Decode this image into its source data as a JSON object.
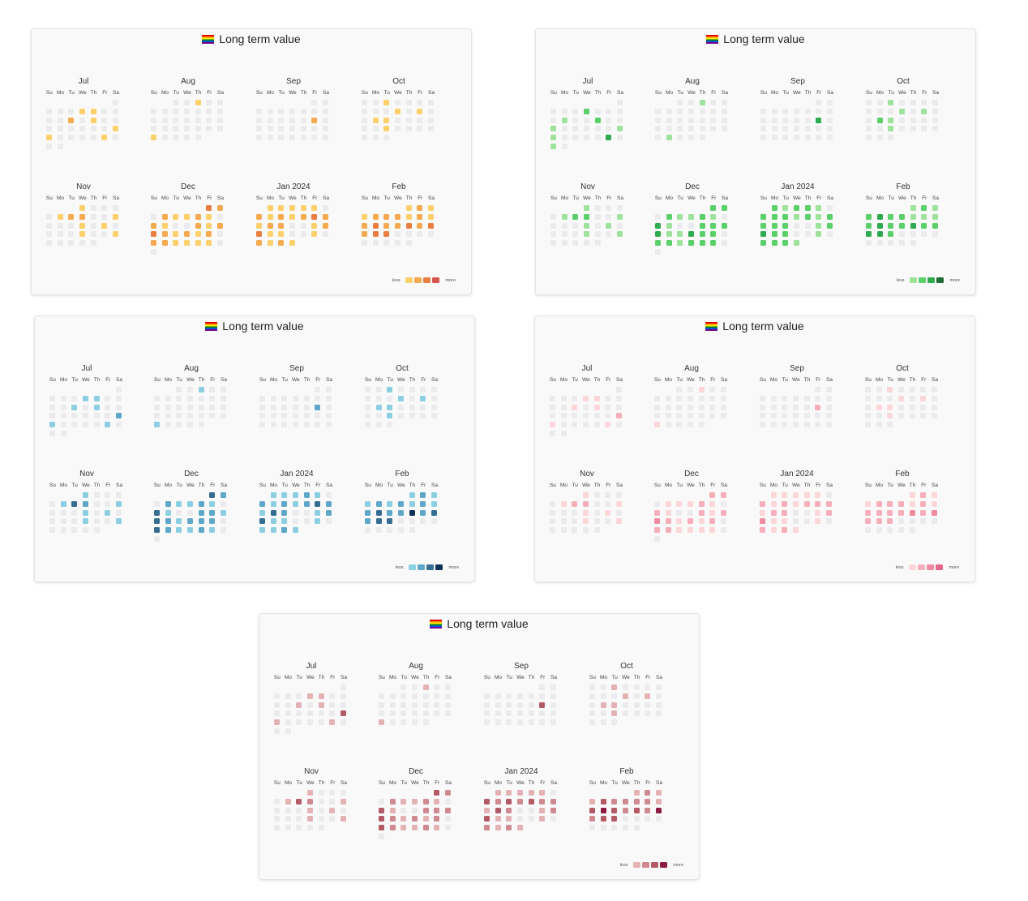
{
  "cards": [
    {
      "title": "Long term value",
      "scheme": "orange"
    },
    {
      "title": "Long term value",
      "scheme": "green"
    },
    {
      "title": "Long term value",
      "scheme": "blue"
    },
    {
      "title": "Long term value",
      "scheme": "pink"
    },
    {
      "title": "Long term value",
      "scheme": "rose"
    }
  ],
  "legend": {
    "less": "less",
    "more": "more"
  },
  "weekdays": [
    "Su",
    "Mo",
    "Tu",
    "We",
    "Th",
    "Fr",
    "Sa"
  ],
  "months": [
    {
      "label": "Jul",
      "start_dow": 6,
      "days": 31
    },
    {
      "label": "Aug",
      "start_dow": 2,
      "days": 31
    },
    {
      "label": "Sep",
      "start_dow": 5,
      "days": 30
    },
    {
      "label": "Oct",
      "start_dow": 0,
      "days": 31
    },
    {
      "label": "Nov",
      "start_dow": 3,
      "days": 30
    },
    {
      "label": "Dec",
      "start_dow": 5,
      "days": 31
    },
    {
      "label": "Jan 2024",
      "start_dow": 1,
      "days": 31
    },
    {
      "label": "Feb",
      "start_dow": 4,
      "days": 29
    }
  ],
  "palettes": {
    "empty": "#ebebed",
    "orange": [
      "#fcd06b",
      "#f5aa4f",
      "#e97e40",
      "#d9534f"
    ],
    "green": [
      "#9ee29c",
      "#5bcf6a",
      "#2eaa4f",
      "#206b36"
    ],
    "blue": [
      "#8ccfe2",
      "#5fa7c8",
      "#366d92",
      "#0f3057"
    ],
    "pink": [
      "#fcd6d9",
      "#f7aebb",
      "#f08aa0",
      "#e7648a"
    ],
    "rose": [
      "#e4b2b5",
      "#cf8990",
      "#b45a67",
      "#8c1c43"
    ]
  },
  "activity": {
    "orange": {
      "Jul": {
        "5": 1,
        "6": 1,
        "11": 2,
        "13": 1,
        "22": 1,
        "23": 1,
        "28": 1
      },
      "Aug": {
        "3": 1,
        "27": 1
      },
      "Sep": {
        "15": 2
      },
      "Oct": {
        "3": 1,
        "11": 1,
        "13": 1,
        "16": 1,
        "17": 1,
        "24": 1
      },
      "Nov": {
        "1": 1,
        "6": 1,
        "7": 2,
        "8": 2,
        "11": 1,
        "15": 1,
        "17": 1,
        "22": 1,
        "25": 1
      },
      "Dec": {
        "1": 3,
        "2": 2,
        "4": 2,
        "5": 1,
        "6": 1,
        "7": 2,
        "8": 1,
        "10": 2,
        "11": 1,
        "14": 2,
        "15": 1,
        "16": 2,
        "17": 3,
        "18": 2,
        "19": 1,
        "20": 2,
        "21": 1,
        "22": 2,
        "24": 2,
        "25": 2,
        "26": 1,
        "27": 1,
        "28": 1,
        "29": 1
      },
      "Jan 2024": {
        "1": 1,
        "2": 1,
        "3": 1,
        "4": 1,
        "5": 1,
        "7": 2,
        "8": 1,
        "9": 2,
        "10": 1,
        "11": 2,
        "12": 3,
        "13": 2,
        "14": 1,
        "15": 2,
        "16": 2,
        "19": 1,
        "20": 2,
        "21": 3,
        "22": 1,
        "23": 1,
        "26": 1,
        "28": 2,
        "29": 1,
        "30": 2,
        "31": 1
      },
      "Feb": {
        "1": 1,
        "2": 2,
        "3": 1,
        "4": 1,
        "5": 2,
        "6": 2,
        "7": 2,
        "8": 1,
        "9": 2,
        "10": 1,
        "11": 2,
        "12": 3,
        "13": 2,
        "14": 2,
        "15": 3,
        "16": 2,
        "17": 3,
        "18": 2,
        "19": 3,
        "20": 3
      }
    },
    "green": {
      "Jul": {
        "5": 2,
        "10": 1,
        "13": 2,
        "16": 1,
        "22": 1,
        "23": 1,
        "28": 3,
        "30": 1
      },
      "Aug": {
        "3": 1,
        "28": 1
      },
      "Sep": {
        "15": 3
      },
      "Oct": {
        "3": 1,
        "11": 1,
        "13": 1,
        "16": 2,
        "17": 1,
        "24": 1
      },
      "Nov": {
        "1": 1,
        "6": 1,
        "7": 2,
        "8": 2,
        "11": 1,
        "15": 1,
        "17": 1,
        "22": 1,
        "25": 1
      },
      "Dec": {
        "1": 2,
        "2": 2,
        "4": 2,
        "5": 1,
        "6": 1,
        "7": 2,
        "8": 1,
        "10": 3,
        "11": 1,
        "14": 2,
        "15": 2,
        "16": 2,
        "17": 3,
        "18": 1,
        "19": 1,
        "20": 3,
        "21": 2,
        "22": 2,
        "24": 2,
        "25": 2,
        "26": 1,
        "27": 2,
        "28": 2,
        "29": 2
      },
      "Jan 2024": {
        "1": 2,
        "2": 1,
        "3": 2,
        "4": 2,
        "5": 1,
        "7": 2,
        "8": 2,
        "9": 2,
        "10": 1,
        "11": 2,
        "12": 1,
        "13": 2,
        "14": 2,
        "15": 2,
        "16": 2,
        "19": 1,
        "20": 2,
        "21": 3,
        "22": 2,
        "23": 2,
        "26": 1,
        "28": 2,
        "29": 2,
        "30": 2,
        "31": 1
      },
      "Feb": {
        "1": 1,
        "2": 2,
        "3": 1,
        "4": 2,
        "5": 3,
        "6": 2,
        "7": 2,
        "8": 1,
        "9": 1,
        "10": 1,
        "11": 2,
        "12": 3,
        "13": 2,
        "14": 2,
        "15": 3,
        "16": 2,
        "17": 2,
        "18": 3,
        "19": 3,
        "20": 2
      }
    },
    "blue": {
      "Jul": {
        "5": 1,
        "6": 1,
        "11": 1,
        "13": 1,
        "22": 2,
        "23": 1,
        "28": 1
      },
      "Aug": {
        "3": 1,
        "27": 1
      },
      "Sep": {
        "15": 2
      },
      "Oct": {
        "3": 1,
        "11": 1,
        "13": 1,
        "16": 1,
        "17": 1,
        "24": 1
      },
      "Nov": {
        "1": 1,
        "6": 1,
        "7": 3,
        "8": 2,
        "11": 1,
        "15": 1,
        "17": 1,
        "22": 1,
        "25": 1
      },
      "Dec": {
        "1": 3,
        "2": 2,
        "4": 2,
        "5": 1,
        "6": 1,
        "7": 2,
        "8": 1,
        "10": 3,
        "11": 1,
        "14": 2,
        "15": 2,
        "16": 1,
        "17": 3,
        "18": 2,
        "19": 1,
        "20": 2,
        "21": 2,
        "22": 2,
        "24": 3,
        "25": 2,
        "26": 1,
        "27": 1,
        "28": 2,
        "29": 1
      },
      "Jan 2024": {
        "1": 1,
        "2": 1,
        "3": 1,
        "4": 2,
        "5": 1,
        "7": 2,
        "8": 1,
        "9": 2,
        "10": 1,
        "11": 2,
        "12": 3,
        "13": 2,
        "14": 1,
        "15": 3,
        "16": 2,
        "19": 1,
        "20": 2,
        "21": 3,
        "22": 1,
        "23": 1,
        "26": 1,
        "28": 1,
        "29": 1,
        "30": 2,
        "31": 1
      },
      "Feb": {
        "1": 1,
        "2": 2,
        "3": 1,
        "4": 1,
        "5": 2,
        "6": 1,
        "7": 2,
        "8": 1,
        "9": 2,
        "10": 1,
        "11": 2,
        "12": 3,
        "13": 2,
        "14": 2,
        "15": 4,
        "16": 2,
        "17": 3,
        "18": 2,
        "19": 3,
        "20": 3
      }
    },
    "pink": {
      "Jul": {
        "5": 1,
        "6": 1,
        "11": 1,
        "13": 1,
        "22": 2,
        "23": 1,
        "28": 1
      },
      "Aug": {
        "3": 1,
        "27": 1
      },
      "Sep": {
        "15": 2
      },
      "Oct": {
        "3": 1,
        "11": 1,
        "13": 1,
        "16": 1,
        "17": 1,
        "24": 1
      },
      "Nov": {
        "1": 1,
        "6": 1,
        "7": 2,
        "8": 2,
        "11": 1,
        "15": 1,
        "17": 1,
        "22": 1,
        "25": 1
      },
      "Dec": {
        "1": 2,
        "2": 2,
        "4": 1,
        "5": 1,
        "6": 1,
        "7": 2,
        "8": 1,
        "10": 2,
        "11": 1,
        "14": 2,
        "15": 1,
        "16": 2,
        "17": 3,
        "18": 2,
        "19": 1,
        "20": 2,
        "21": 1,
        "22": 2,
        "24": 2,
        "25": 2,
        "26": 1,
        "27": 1,
        "28": 1,
        "29": 1
      },
      "Jan 2024": {
        "1": 1,
        "2": 1,
        "3": 1,
        "4": 1,
        "5": 1,
        "7": 2,
        "8": 1,
        "9": 2,
        "10": 1,
        "11": 2,
        "12": 2,
        "13": 2,
        "14": 1,
        "15": 2,
        "16": 2,
        "19": 1,
        "20": 2,
        "21": 3,
        "22": 1,
        "23": 1,
        "26": 1,
        "28": 2,
        "29": 1,
        "30": 2,
        "31": 1
      },
      "Feb": {
        "1": 1,
        "2": 2,
        "3": 1,
        "4": 1,
        "5": 2,
        "6": 2,
        "7": 2,
        "8": 1,
        "9": 2,
        "10": 1,
        "11": 2,
        "12": 2,
        "13": 2,
        "14": 2,
        "15": 3,
        "16": 2,
        "17": 3,
        "18": 2,
        "19": 2,
        "20": 2
      }
    },
    "rose": {
      "Jul": {
        "5": 1,
        "6": 1,
        "11": 1,
        "13": 1,
        "22": 3,
        "23": 1,
        "28": 1
      },
      "Aug": {
        "3": 1,
        "27": 1
      },
      "Sep": {
        "15": 3
      },
      "Oct": {
        "3": 1,
        "11": 1,
        "13": 1,
        "16": 1,
        "17": 1,
        "24": 1
      },
      "Nov": {
        "1": 1,
        "6": 1,
        "7": 3,
        "8": 2,
        "11": 1,
        "15": 1,
        "17": 1,
        "22": 1,
        "25": 1
      },
      "Dec": {
        "1": 3,
        "2": 2,
        "4": 2,
        "5": 1,
        "6": 1,
        "7": 2,
        "8": 1,
        "10": 3,
        "11": 1,
        "14": 2,
        "15": 2,
        "16": 2,
        "17": 3,
        "18": 2,
        "19": 1,
        "20": 2,
        "21": 1,
        "22": 2,
        "24": 3,
        "25": 2,
        "26": 1,
        "27": 1,
        "28": 2,
        "29": 1
      },
      "Jan 2024": {
        "1": 1,
        "2": 1,
        "3": 1,
        "4": 1,
        "5": 1,
        "7": 3,
        "8": 2,
        "9": 3,
        "10": 2,
        "11": 3,
        "12": 2,
        "13": 2,
        "14": 1,
        "15": 3,
        "16": 2,
        "19": 1,
        "20": 2,
        "21": 3,
        "22": 1,
        "23": 1,
        "26": 1,
        "28": 2,
        "29": 1,
        "30": 2,
        "31": 1
      },
      "Feb": {
        "1": 1,
        "2": 2,
        "3": 1,
        "4": 1,
        "5": 3,
        "6": 2,
        "7": 2,
        "8": 2,
        "9": 2,
        "10": 1,
        "11": 3,
        "12": 4,
        "13": 3,
        "14": 2,
        "15": 3,
        "16": 2,
        "17": 4,
        "18": 2,
        "19": 3,
        "20": 3
      }
    }
  }
}
